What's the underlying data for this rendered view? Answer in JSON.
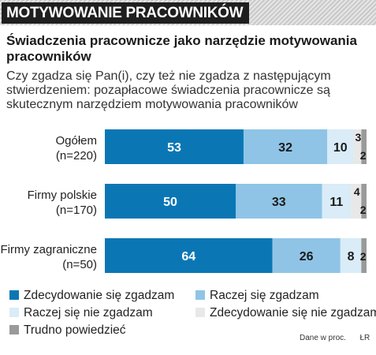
{
  "header": {
    "section_label": "MOTYWOWANIE PRACOWNIKÓW"
  },
  "chart_data": {
    "type": "bar",
    "orientation": "horizontal",
    "stacked": true,
    "title": "Świadczenia pracownicze jako narzędzie motywowania pracowników",
    "subtitle": "Czy zgadza się Pan(i), czy też nie zgadza z następującym stwierdzeniem: pozapłacowe świadczenia pracownicze są skutecznym narzędziem motywowania pracowników",
    "categories": [
      {
        "name": "Ogółem",
        "sample": "(n=220)"
      },
      {
        "name": "Firmy polskie",
        "sample": "(n=170)"
      },
      {
        "name": "Firmy zagraniczne",
        "sample": "(n=50)"
      }
    ],
    "series": [
      {
        "name": "Zdecydowanie się zgadzam",
        "color": "#0a77b4",
        "label_color": "#ffffff",
        "values": [
          53,
          50,
          64
        ]
      },
      {
        "name": "Raczej się zgadzam",
        "color": "#8fc4e6",
        "label_color": "#1a1a1a",
        "values": [
          32,
          33,
          26
        ]
      },
      {
        "name": "Raczej się nie zgadzam",
        "color": "#d9ecf7",
        "label_color": "#1a1a1a",
        "values": [
          10,
          11,
          8
        ]
      },
      {
        "name": "Zdecydowanie się nie zgadzam",
        "color": "#e8e8e8",
        "label_color": "#1a1a1a",
        "values": [
          3,
          4,
          0
        ]
      },
      {
        "name": "Trudno powiedzieć",
        "color": "#9a9a9a",
        "label_color": "#1a1a1a",
        "values": [
          2,
          2,
          2
        ]
      }
    ],
    "value_labels": [
      [
        "53",
        "32",
        "10",
        "3",
        "2"
      ],
      [
        "50",
        "33",
        "11",
        "4",
        "2"
      ],
      [
        "64",
        "26",
        "8",
        "",
        "2"
      ]
    ],
    "xlim": [
      0,
      100
    ],
    "unit": "%"
  },
  "source_note": "Dane w proc.",
  "credit": "ŁR"
}
